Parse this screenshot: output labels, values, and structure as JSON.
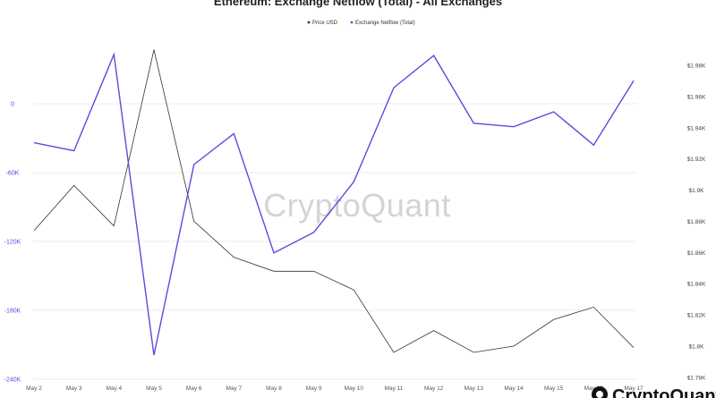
{
  "watermark": "CryptoQuant",
  "brand": {
    "text": "CryptoQuant",
    "icon": "cryptoquant-logo-icon"
  },
  "colors": {
    "price": "#333333",
    "netflow": "#5b4bdb",
    "grid": "#ececec"
  },
  "chart_data": {
    "type": "line",
    "title": "Ethereum: Exchange Netflow (Total) - All Exchanges",
    "categories": [
      "May 2",
      "May 3",
      "May 4",
      "May 5",
      "May 6",
      "May 7",
      "May 8",
      "May 9",
      "May 10",
      "May 11",
      "May 12",
      "May 13",
      "May 14",
      "May 15",
      "May 16",
      "May 17"
    ],
    "legend_placement": "top-center",
    "grid": true,
    "left_axis": {
      "ylim": [
        -240000,
        40000
      ],
      "ticks": [
        0,
        -60000,
        -120000,
        -180000,
        -240000
      ],
      "tick_labels": [
        "0",
        "-60K",
        "-120K",
        "-180K",
        "-240K"
      ]
    },
    "right_axis": {
      "ylim": [
        1780,
        2000
      ],
      "ticks": [
        1780,
        1800,
        1820,
        1840,
        1860,
        1880,
        1900,
        1920,
        1940,
        1960,
        1980
      ],
      "tick_labels": [
        "$1.78K",
        "$1.8K",
        "$1.82K",
        "$1.84K",
        "$1.86K",
        "$1.88K",
        "$1.9K",
        "$1.92K",
        "$1.94K",
        "$1.96K",
        "$1.98K"
      ]
    },
    "series": [
      {
        "name": "Price USD",
        "axis": "right",
        "color": "#333333",
        "values": [
          1874,
          1903,
          1877,
          1990,
          1880,
          1857,
          1848,
          1848,
          1836,
          1796,
          1810,
          1796,
          1800,
          1817,
          1825,
          1799
        ]
      },
      {
        "name": "Exchange Netflow (Total)",
        "axis": "left",
        "color": "#5b4bdb",
        "values": [
          -34000,
          -41000,
          43000,
          -219000,
          -53000,
          -26000,
          -130000,
          -112000,
          -68000,
          14000,
          42000,
          -17000,
          -20000,
          -7000,
          -36000,
          20000
        ]
      }
    ]
  }
}
